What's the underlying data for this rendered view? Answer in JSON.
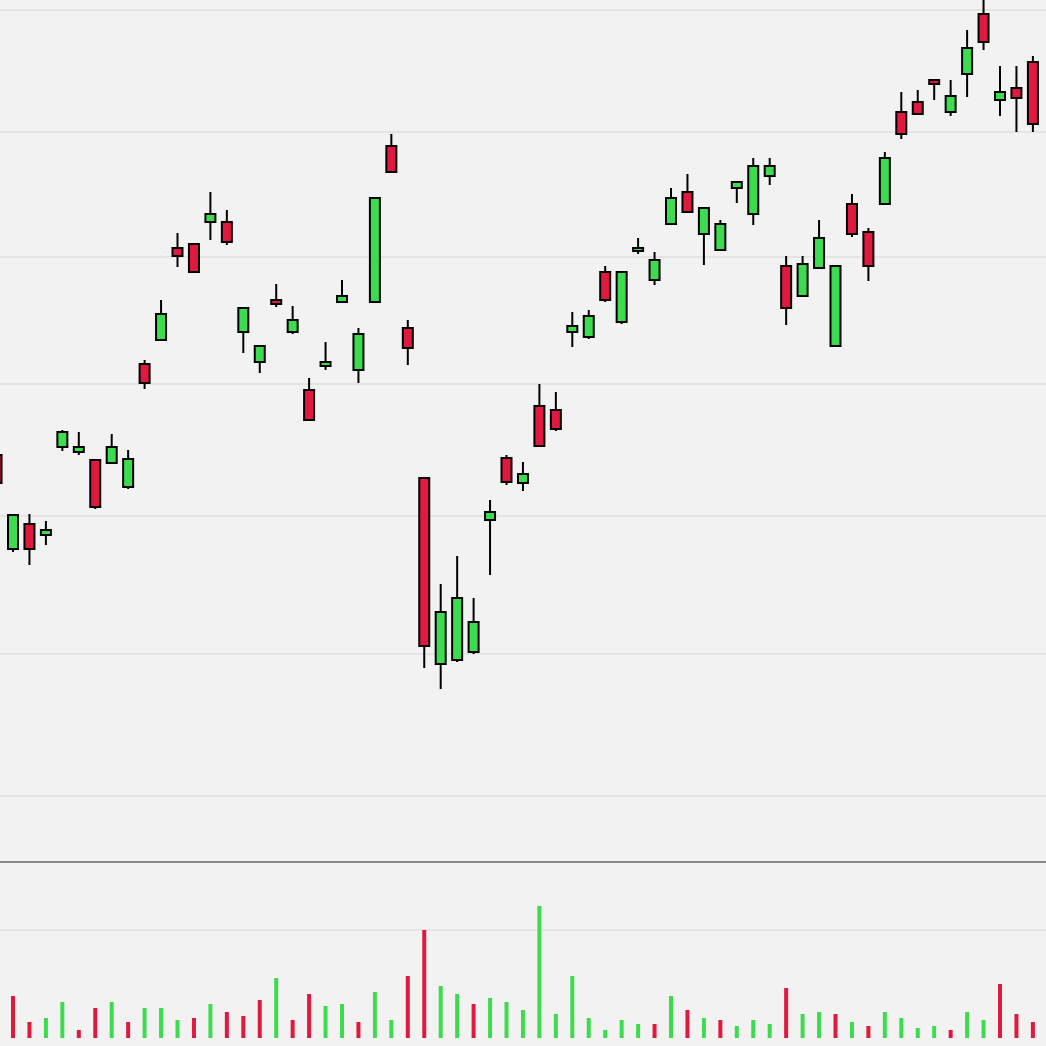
{
  "chart_data": {
    "type": "candlestick",
    "open": [
      405,
      311,
      336,
      325,
      413,
      408,
      400,
      397,
      373,
      496,
      520,
      612,
      616,
      638,
      638,
      528,
      498,
      560,
      528,
      470,
      494,
      558,
      490,
      558,
      714,
      532,
      382,
      196,
      200,
      208,
      340,
      402,
      377,
      454,
      450,
      528,
      523,
      588,
      538,
      609,
      580,
      636,
      668,
      626,
      610,
      672,
      646,
      684,
      594,
      564,
      592,
      514,
      656,
      628,
      656,
      748,
      758,
      780,
      748,
      786,
      846,
      760,
      772,
      798
    ],
    "high": [
      405,
      345,
      346,
      339,
      430,
      428,
      401,
      426,
      410,
      500,
      560,
      627,
      616,
      668,
      650,
      552,
      514,
      576,
      554,
      482,
      518,
      580,
      532,
      662,
      726,
      540,
      382,
      276,
      304,
      262,
      360,
      405,
      398,
      476,
      468,
      548,
      550,
      594,
      588,
      622,
      608,
      672,
      686,
      652,
      640,
      678,
      702,
      702,
      604,
      604,
      640,
      594,
      666,
      632,
      708,
      768,
      770,
      780,
      780,
      830,
      860,
      794,
      794,
      804
    ],
    "low": [
      377,
      308,
      295,
      315,
      409,
      405,
      351,
      396,
      371,
      471,
      519,
      593,
      587,
      620,
      615,
      507,
      487,
      553,
      526,
      440,
      490,
      558,
      477,
      558,
      688,
      495,
      192,
      171,
      198,
      206,
      285,
      375,
      369,
      414,
      429,
      513,
      521,
      558,
      536,
      606,
      575,
      635,
      647,
      595,
      610,
      657,
      635,
      675,
      535,
      563,
      591,
      514,
      623,
      579,
      655,
      721,
      746,
      760,
      744,
      763,
      810,
      744,
      728,
      728
    ],
    "close": [
      377,
      345,
      311,
      330,
      428,
      413,
      353,
      413,
      401,
      477,
      546,
      604,
      588,
      646,
      618,
      552,
      514,
      556,
      540,
      440,
      498,
      564,
      526,
      662,
      688,
      512,
      214,
      248,
      262,
      238,
      348,
      378,
      386,
      414,
      431,
      534,
      544,
      560,
      588,
      612,
      600,
      662,
      648,
      652,
      636,
      678,
      694,
      694,
      552,
      596,
      622,
      594,
      626,
      594,
      702,
      726,
      746,
      776,
      764,
      812,
      818,
      768,
      762,
      736
    ],
    "volume": [
      null,
      42,
      16,
      20,
      36,
      8,
      30,
      36,
      16,
      30,
      30,
      18,
      20,
      34,
      26,
      22,
      38,
      60,
      18,
      44,
      32,
      34,
      16,
      46,
      18,
      62,
      108,
      52,
      44,
      34,
      40,
      36,
      28,
      132,
      24,
      62,
      20,
      8,
      18,
      14,
      14,
      42,
      28,
      20,
      18,
      12,
      18,
      14,
      50,
      24,
      26,
      24,
      16,
      12,
      26,
      20,
      10,
      12,
      8,
      26,
      18,
      54,
      24,
      16
    ],
    "volume_up": [
      null,
      false,
      false,
      true,
      true,
      false,
      false,
      true,
      false,
      true,
      true,
      true,
      false,
      true,
      false,
      false,
      false,
      true,
      false,
      false,
      true,
      true,
      false,
      true,
      true,
      false,
      false,
      true,
      true,
      false,
      true,
      true,
      true,
      true,
      true,
      true,
      true,
      true,
      true,
      true,
      false,
      true,
      false,
      true,
      false,
      true,
      true,
      true,
      false,
      true,
      true,
      false,
      true,
      false,
      true,
      true,
      true,
      true,
      false,
      true,
      true,
      false,
      false,
      false
    ],
    "up_color": "#3ddc4f",
    "down_color": "#e0193f",
    "ylim": [
      0,
      860
    ],
    "yticks": [
      64,
      206,
      344,
      476,
      603,
      728,
      850
    ],
    "volume_ylim": [
      0,
      180
    ],
    "volume_ticks": [
      108
    ],
    "grid": true
  }
}
